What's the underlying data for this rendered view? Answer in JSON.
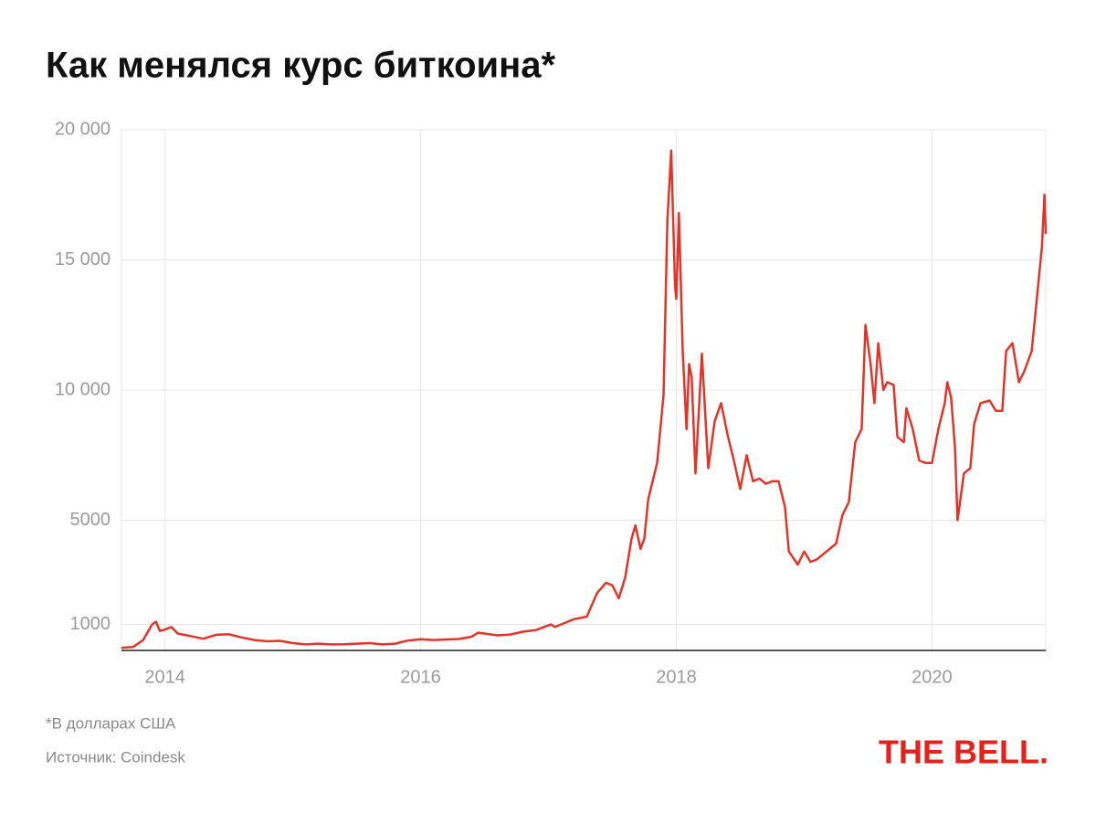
{
  "chart_data": {
    "type": "line",
    "title": "Как менялся курс биткоина*",
    "note": "*В долларах США",
    "source": "Источник: Coindesk",
    "logo": "THE BELL.",
    "color": "#e3342a",
    "grid": true,
    "xlim": [
      2013.66,
      2020.89
    ],
    "xticks": [
      2014,
      2016,
      2018,
      2020
    ],
    "ylim": [
      0,
      20000
    ],
    "yticks": [
      {
        "value": 20000,
        "label": "20 000"
      },
      {
        "value": 15000,
        "label": "15 000"
      },
      {
        "value": 10000,
        "label": "10 000"
      },
      5000,
      1000
    ],
    "x": [
      2013.66,
      2013.75,
      2013.83,
      2013.9,
      2013.93,
      2013.96,
      2014.0,
      2014.05,
      2014.1,
      2014.2,
      2014.3,
      2014.4,
      2014.5,
      2014.6,
      2014.7,
      2014.8,
      2014.9,
      2015.0,
      2015.1,
      2015.2,
      2015.3,
      2015.4,
      2015.5,
      2015.6,
      2015.7,
      2015.8,
      2015.9,
      2016.0,
      2016.1,
      2016.2,
      2016.3,
      2016.4,
      2016.45,
      2016.5,
      2016.6,
      2016.7,
      2016.8,
      2016.9,
      2017.0,
      2017.02,
      2017.05,
      2017.15,
      2017.2,
      2017.3,
      2017.38,
      2017.45,
      2017.5,
      2017.55,
      2017.6,
      2017.65,
      2017.68,
      2017.72,
      2017.75,
      2017.78,
      2017.85,
      2017.9,
      2017.93,
      2017.96,
      2017.99,
      2018.0,
      2018.02,
      2018.05,
      2018.08,
      2018.1,
      2018.12,
      2018.15,
      2018.2,
      2018.25,
      2018.3,
      2018.35,
      2018.4,
      2018.45,
      2018.5,
      2018.55,
      2018.6,
      2018.65,
      2018.7,
      2018.75,
      2018.8,
      2018.85,
      2018.88,
      2018.95,
      2019.0,
      2019.05,
      2019.1,
      2019.2,
      2019.25,
      2019.3,
      2019.35,
      2019.4,
      2019.45,
      2019.48,
      2019.52,
      2019.55,
      2019.58,
      2019.62,
      2019.65,
      2019.7,
      2019.73,
      2019.78,
      2019.8,
      2019.85,
      2019.9,
      2019.95,
      2020.0,
      2020.05,
      2020.1,
      2020.12,
      2020.15,
      2020.18,
      2020.2,
      2020.25,
      2020.3,
      2020.33,
      2020.38,
      2020.45,
      2020.5,
      2020.55,
      2020.58,
      2020.63,
      2020.68,
      2020.72,
      2020.78,
      2020.82,
      2020.86,
      2020.88,
      2020.89
    ],
    "values": [
      100,
      130,
      400,
      1000,
      1100,
      750,
      800,
      900,
      650,
      550,
      450,
      600,
      620,
      500,
      400,
      350,
      370,
      280,
      230,
      260,
      230,
      240,
      260,
      280,
      230,
      260,
      380,
      430,
      400,
      420,
      440,
      530,
      680,
      650,
      580,
      610,
      720,
      780,
      960,
      1000,
      900,
      1100,
      1200,
      1300,
      2200,
      2600,
      2500,
      2000,
      2800,
      4300,
      4800,
      3900,
      4300,
      5800,
      7200,
      9800,
      16500,
      19200,
      14000,
      13500,
      16800,
      11500,
      8500,
      11000,
      10500,
      6800,
      11400,
      7000,
      8800,
      9500,
      8300,
      7300,
      6200,
      7500,
      6500,
      6600,
      6400,
      6500,
      6500,
      5500,
      3800,
      3300,
      3800,
      3400,
      3500,
      3900,
      4100,
      5200,
      5700,
      8000,
      8500,
      12500,
      11000,
      9500,
      11800,
      10000,
      10300,
      10200,
      8200,
      8000,
      9300,
      8500,
      7300,
      7200,
      7200,
      8500,
      9500,
      10300,
      9700,
      7800,
      5000,
      6800,
      7000,
      8700,
      9500,
      9600,
      9200,
      9200,
      11500,
      11800,
      10300,
      10700,
      11500,
      13500,
      15500,
      17500,
      16000
    ]
  }
}
